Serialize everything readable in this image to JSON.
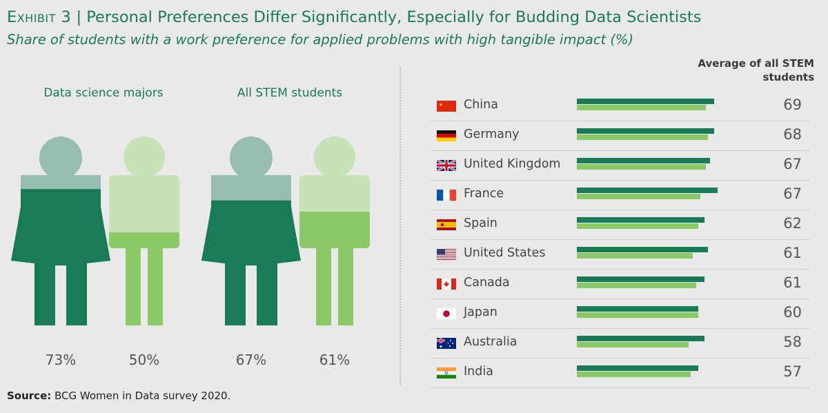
{
  "header": {
    "exhibit": "Exhibit 3",
    "separator": " | ",
    "title": "Personal Preferences Differ Significantly, Especially for Budding Data Scientists",
    "subtitle": "Share of students with a work preference for applied problems with high tangible impact (%)"
  },
  "colors": {
    "dark_green": "#197a56",
    "light_green": "#8bc866",
    "text_green": "#197a56"
  },
  "chart_data": [
    {
      "type": "bar",
      "groups": [
        {
          "label": "Data science majors",
          "values": [
            {
              "label": "73%",
              "value": 73,
              "figure": "female"
            },
            {
              "label": "50%",
              "value": 50,
              "figure": "male"
            }
          ]
        },
        {
          "label": "All STEM students",
          "values": [
            {
              "label": "67%",
              "value": 67,
              "figure": "female"
            },
            {
              "label": "61%",
              "value": 61,
              "figure": "male"
            }
          ]
        }
      ]
    },
    {
      "type": "bar",
      "orientation": "horizontal",
      "value_header": "Average of all STEM students",
      "xlim": [
        0,
        100
      ],
      "categories": [
        "China",
        "Germany",
        "United Kingdom",
        "France",
        "Spain",
        "United States",
        "Canada",
        "Japan",
        "Australia",
        "India"
      ],
      "flags": [
        "china-flag-icon",
        "germany-flag-icon",
        "uk-flag-icon",
        "france-flag-icon",
        "spain-flag-icon",
        "usa-flag-icon",
        "canada-flag-icon",
        "japan-flag-icon",
        "australia-flag-icon",
        "india-flag-icon"
      ],
      "series": [
        {
          "color": "#197a56",
          "values": [
            70,
            70,
            68,
            72,
            65,
            67,
            65,
            62,
            65,
            62
          ]
        },
        {
          "color": "#8bc866",
          "values": [
            66,
            67,
            66,
            63,
            62,
            59,
            61,
            62,
            57,
            58
          ]
        }
      ],
      "value_labels": [
        "69",
        "68",
        "67",
        "67",
        "62",
        "61",
        "61",
        "60",
        "58",
        "57"
      ]
    }
  ],
  "source": {
    "label": "Source:",
    "text": " BCG Women in Data survey 2020."
  }
}
